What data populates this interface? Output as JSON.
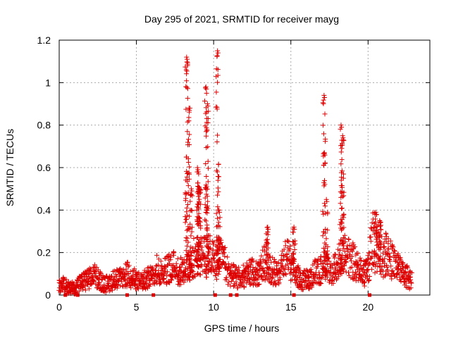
{
  "chart_data": {
    "type": "scatter",
    "title": "Day 295 of 2021, SRMTID for receiver mayg",
    "xlabel": "GPS time / hours",
    "ylabel": "SRMTID / TECUs",
    "xlim": [
      0,
      24
    ],
    "ylim": [
      0,
      1.2
    ],
    "x_ticks": [
      0,
      5,
      10,
      15,
      20
    ],
    "x_tick_labels": [
      "0",
      "5",
      "10",
      "15",
      "20"
    ],
    "y_ticks": [
      0,
      0.2,
      0.4,
      0.6,
      0.8,
      1.0,
      1.2
    ],
    "y_tick_labels": [
      "0",
      "0.2",
      "0.4",
      "0.6",
      "0.8",
      "1",
      "1.2"
    ],
    "grid": true,
    "marker": "plus",
    "series_color": "#dd0000",
    "series": [
      {
        "name": "SRMTID",
        "data_note": "points approximated from the plotted scatter",
        "baseline": [
          [
            0.0,
            0.04
          ],
          [
            0.25,
            0.05
          ],
          [
            0.5,
            0.04
          ],
          [
            0.75,
            0.035
          ],
          [
            1.0,
            0.03
          ],
          [
            1.25,
            0.05
          ],
          [
            1.5,
            0.06
          ],
          [
            1.75,
            0.07
          ],
          [
            2.0,
            0.08
          ],
          [
            2.25,
            0.09
          ],
          [
            2.5,
            0.085
          ],
          [
            2.75,
            0.06
          ],
          [
            3.0,
            0.05
          ],
          [
            3.25,
            0.06
          ],
          [
            3.5,
            0.07
          ],
          [
            3.75,
            0.075
          ],
          [
            4.0,
            0.08
          ],
          [
            4.25,
            0.09
          ],
          [
            4.5,
            0.1
          ],
          [
            4.75,
            0.08
          ],
          [
            5.0,
            0.07
          ],
          [
            5.25,
            0.06
          ],
          [
            5.5,
            0.07
          ],
          [
            5.75,
            0.08
          ],
          [
            6.0,
            0.1
          ],
          [
            6.25,
            0.12
          ],
          [
            6.5,
            0.12
          ],
          [
            6.75,
            0.11
          ],
          [
            7.0,
            0.12
          ],
          [
            7.25,
            0.14
          ],
          [
            7.5,
            0.13
          ],
          [
            7.75,
            0.11
          ],
          [
            8.0,
            0.12
          ],
          [
            8.25,
            0.14
          ],
          [
            8.5,
            0.15
          ],
          [
            8.75,
            0.18
          ],
          [
            9.0,
            0.16
          ],
          [
            9.25,
            0.2
          ],
          [
            9.5,
            0.17
          ],
          [
            9.75,
            0.19
          ],
          [
            10.0,
            0.17
          ],
          [
            10.25,
            0.18
          ],
          [
            10.5,
            0.18
          ],
          [
            10.75,
            0.15
          ],
          [
            11.0,
            0.1
          ],
          [
            11.25,
            0.09
          ],
          [
            11.5,
            0.08
          ],
          [
            11.75,
            0.08
          ],
          [
            12.0,
            0.09
          ],
          [
            12.25,
            0.1
          ],
          [
            12.5,
            0.11
          ],
          [
            12.75,
            0.1
          ],
          [
            13.0,
            0.11
          ],
          [
            13.25,
            0.15
          ],
          [
            13.5,
            0.16
          ],
          [
            13.75,
            0.12
          ],
          [
            14.0,
            0.1
          ],
          [
            14.25,
            0.12
          ],
          [
            14.5,
            0.15
          ],
          [
            14.75,
            0.18
          ],
          [
            15.0,
            0.15
          ],
          [
            15.25,
            0.12
          ],
          [
            15.5,
            0.08
          ],
          [
            15.75,
            0.07
          ],
          [
            16.0,
            0.07
          ],
          [
            16.25,
            0.08
          ],
          [
            16.5,
            0.1
          ],
          [
            16.75,
            0.12
          ],
          [
            17.0,
            0.12
          ],
          [
            17.25,
            0.15
          ],
          [
            17.5,
            0.12
          ],
          [
            17.75,
            0.12
          ],
          [
            18.0,
            0.13
          ],
          [
            18.25,
            0.18
          ],
          [
            18.5,
            0.2
          ],
          [
            18.75,
            0.18
          ],
          [
            19.0,
            0.16
          ],
          [
            19.25,
            0.14
          ],
          [
            19.5,
            0.12
          ],
          [
            19.75,
            0.1
          ],
          [
            20.0,
            0.12
          ],
          [
            20.25,
            0.25
          ],
          [
            20.5,
            0.3
          ],
          [
            20.75,
            0.22
          ],
          [
            21.0,
            0.18
          ],
          [
            21.25,
            0.2
          ],
          [
            21.5,
            0.16
          ],
          [
            21.75,
            0.14
          ],
          [
            22.0,
            0.12
          ],
          [
            22.25,
            0.1
          ],
          [
            22.5,
            0.09
          ],
          [
            22.75,
            0.07
          ],
          [
            22.85,
            0.06
          ]
        ],
        "spikes": [
          [
            8.25,
            [
              0.05,
              1.12
            ]
          ],
          [
            8.4,
            [
              0.05,
              0.88
            ]
          ],
          [
            8.55,
            [
              0.1,
              0.5
            ]
          ],
          [
            8.95,
            [
              0.1,
              0.6
            ]
          ],
          [
            9.0,
            [
              0.3,
              0.58
            ]
          ],
          [
            9.1,
            [
              0.15,
              0.5
            ]
          ],
          [
            9.5,
            [
              0.1,
              0.98
            ]
          ],
          [
            9.6,
            [
              0.1,
              0.9
            ]
          ],
          [
            10.25,
            [
              0.05,
              1.15
            ]
          ],
          [
            10.35,
            [
              0.1,
              0.4
            ]
          ],
          [
            13.5,
            [
              0.1,
              0.32
            ]
          ],
          [
            15.2,
            [
              0.08,
              0.32
            ]
          ],
          [
            17.15,
            [
              0.1,
              0.94
            ]
          ],
          [
            17.3,
            [
              0.1,
              0.45
            ]
          ],
          [
            18.25,
            [
              0.1,
              0.8
            ]
          ],
          [
            18.35,
            [
              0.12,
              0.75
            ]
          ],
          [
            20.5,
            [
              0.1,
              0.39
            ]
          ],
          [
            20.75,
            [
              0.1,
              0.35
            ]
          ]
        ],
        "axis_markers_x": [
          0.4,
          1.2,
          4.4,
          6.1,
          10.1,
          11.1,
          11.5,
          15.2,
          20.1
        ]
      }
    ]
  }
}
